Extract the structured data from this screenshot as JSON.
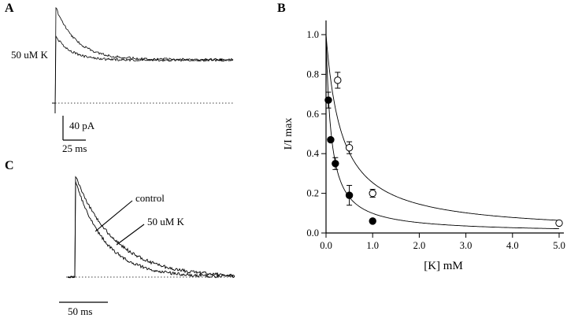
{
  "figure": {
    "panel_a": {
      "label": "A",
      "condition_label": "50 uM K",
      "scale_vertical": "40 pA",
      "scale_horizontal": "25 ms"
    },
    "panel_b": {
      "label": "B"
    },
    "panel_c": {
      "label": "C",
      "annotation_control": "control",
      "annotation_k": "50 uM K",
      "scale_horizontal": "50 ms"
    }
  },
  "chart_data": {
    "type": "scatter",
    "title": "",
    "xlabel": "[K] mM",
    "ylabel": "I/I max",
    "xlim": [
      0.0,
      5.0
    ],
    "ylim": [
      0.0,
      1.0
    ],
    "xticks": [
      0.0,
      1.0,
      2.0,
      3.0,
      4.0,
      5.0
    ],
    "yticks": [
      0.0,
      0.2,
      0.4,
      0.6,
      0.8,
      1.0
    ],
    "grid": false,
    "legend": "none",
    "series": [
      {
        "name": "filled-circles",
        "marker": "filled-circle",
        "points": [
          {
            "x": 0.05,
            "y": 0.67,
            "err": 0.04
          },
          {
            "x": 0.1,
            "y": 0.47,
            "err": 0
          },
          {
            "x": 0.2,
            "y": 0.35,
            "err": 0.03
          },
          {
            "x": 0.5,
            "y": 0.19,
            "err": 0.05
          },
          {
            "x": 1.0,
            "y": 0.06,
            "err": 0
          }
        ]
      },
      {
        "name": "open-circles",
        "marker": "open-circle",
        "points": [
          {
            "x": 0.25,
            "y": 0.77,
            "err": 0.04
          },
          {
            "x": 0.5,
            "y": 0.43,
            "err": 0.03
          },
          {
            "x": 1.0,
            "y": 0.2,
            "err": 0.02
          },
          {
            "x": 5.0,
            "y": 0.05,
            "err": 0.01
          }
        ]
      }
    ],
    "curves": [
      {
        "name": "filled-fit",
        "model": "1/(1+x/ic50)",
        "ic50": 0.11
      },
      {
        "name": "open-fit",
        "model": "1/(1+x/ic50)",
        "ic50": 0.34
      }
    ]
  }
}
